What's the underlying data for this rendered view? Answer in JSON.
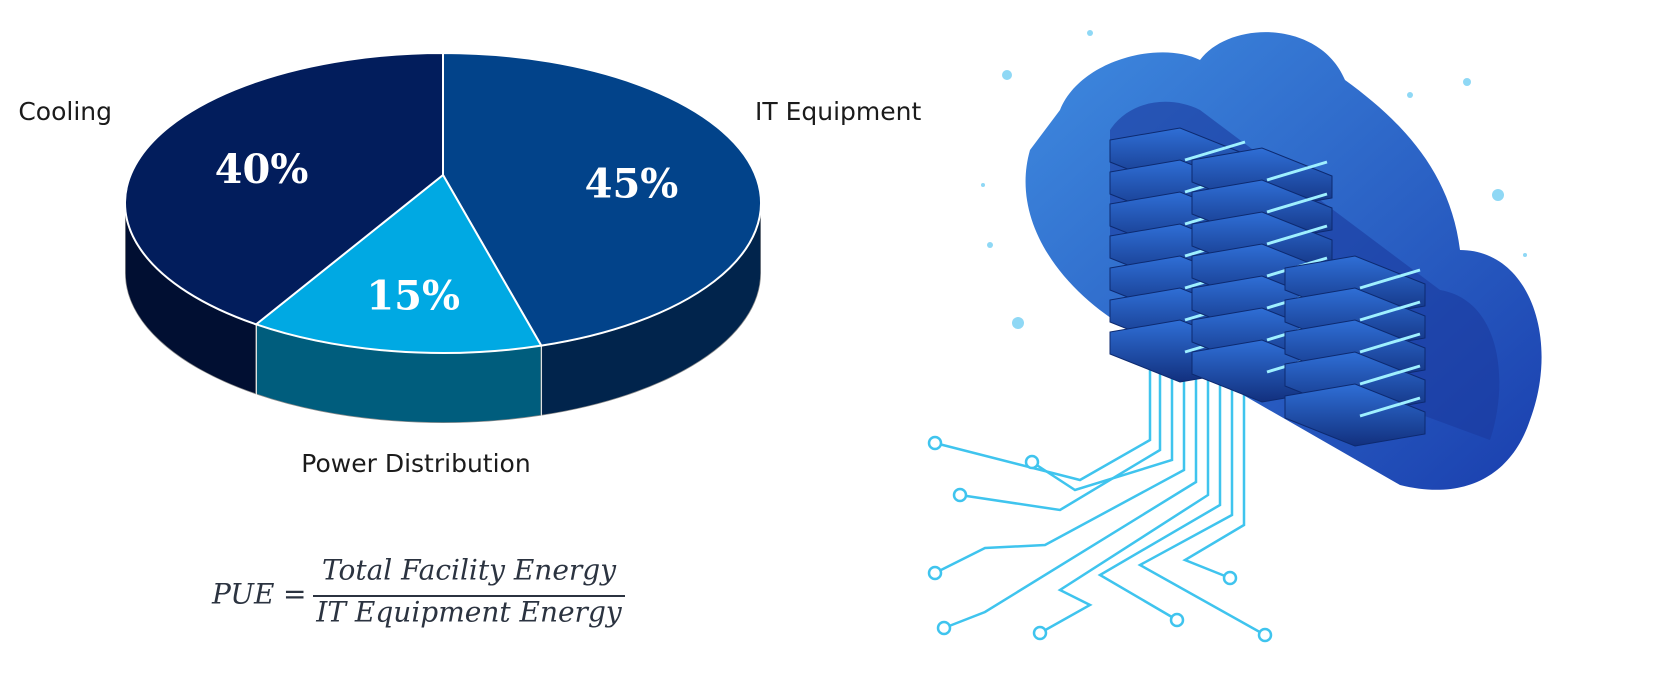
{
  "chart_data": {
    "type": "pie",
    "categories": [
      "IT Equipment",
      "Power Distribution",
      "Cooling"
    ],
    "values": [
      45,
      15,
      40
    ],
    "value_labels": [
      "45%",
      "15%",
      "40%"
    ],
    "colors": [
      "#02438a",
      "#00a9e3",
      "#021d5c"
    ]
  },
  "formula": {
    "lhs": "PUE",
    "operator": "=",
    "numerator": "Total Facility Energy",
    "denominator": "IT Equipment Energy"
  }
}
